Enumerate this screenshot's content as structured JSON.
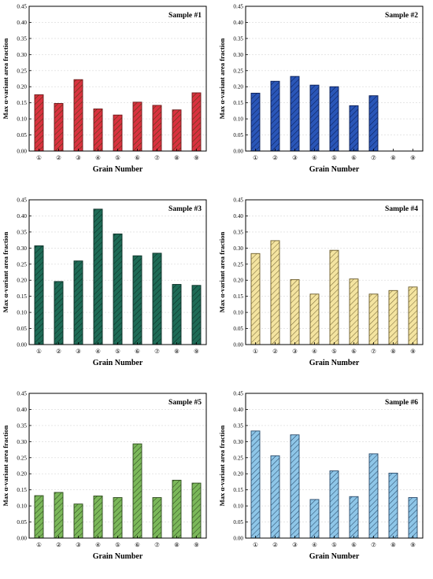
{
  "chart_data": [
    {
      "type": "bar",
      "title": "Sample #1",
      "xlabel": "Grain Number",
      "ylabel": "Max α-variant area fraction",
      "categories": [
        "①",
        "②",
        "③",
        "④",
        "⑤",
        "⑥",
        "⑦",
        "⑧",
        "⑨"
      ],
      "values": [
        0.175,
        0.148,
        0.222,
        0.131,
        0.112,
        0.152,
        0.142,
        0.128,
        0.181
      ],
      "ylim": [
        0,
        0.45
      ],
      "yticks": [
        "0.00",
        "0.05",
        "0.10",
        "0.15",
        "0.20",
        "0.25",
        "0.30",
        "0.35",
        "0.40",
        "0.45"
      ],
      "color": "#d9323f",
      "edge_color": "#6b1a1a",
      "hatch_color": "#4a3a10",
      "grid": true
    },
    {
      "type": "bar",
      "title": "Sample #2",
      "xlabel": "Grain Number",
      "ylabel": "Max α-variant area fraction",
      "categories": [
        "①",
        "②",
        "③",
        "④",
        "⑤",
        "⑥",
        "⑦",
        "⑧",
        "⑨"
      ],
      "values": [
        0.18,
        0.217,
        0.232,
        0.205,
        0.2,
        0.141,
        0.172,
        null,
        null
      ],
      "ylim": [
        0,
        0.45
      ],
      "yticks": [
        "0.00",
        "0.05",
        "0.10",
        "0.15",
        "0.20",
        "0.25",
        "0.30",
        "0.35",
        "0.40",
        "0.45"
      ],
      "color": "#2a56b8",
      "edge_color": "#0c1f55",
      "hatch_color": "#0c1f55",
      "grid": true
    },
    {
      "type": "bar",
      "title": "Sample #3",
      "xlabel": "Grain Number",
      "ylabel": "Max α-variant area fraction",
      "categories": [
        "①",
        "②",
        "③",
        "④",
        "⑤",
        "⑥",
        "⑦",
        "⑧",
        "⑨"
      ],
      "values": [
        0.307,
        0.196,
        0.26,
        0.421,
        0.344,
        0.276,
        0.284,
        0.187,
        0.184
      ],
      "ylim": [
        0,
        0.45
      ],
      "yticks": [
        "0.00",
        "0.05",
        "0.10",
        "0.15",
        "0.20",
        "0.25",
        "0.30",
        "0.35",
        "0.40",
        "0.45"
      ],
      "color": "#1e6b56",
      "edge_color": "#0a2e25",
      "hatch_color": "#0a2e25",
      "grid": true
    },
    {
      "type": "bar",
      "title": "Sample #4",
      "xlabel": "Grain Number",
      "ylabel": "Max α-variant area fraction",
      "categories": [
        "①",
        "②",
        "③",
        "④",
        "⑤",
        "⑥",
        "⑦",
        "⑧",
        "⑨"
      ],
      "values": [
        0.283,
        0.323,
        0.202,
        0.157,
        0.293,
        0.204,
        0.157,
        0.168,
        0.179
      ],
      "ylim": [
        0,
        0.45
      ],
      "yticks": [
        "0.00",
        "0.05",
        "0.10",
        "0.15",
        "0.20",
        "0.25",
        "0.30",
        "0.35",
        "0.40",
        "0.45"
      ],
      "color": "#f4e4a0",
      "edge_color": "#6a5a2a",
      "hatch_color": "#7a6a3a",
      "grid": true
    },
    {
      "type": "bar",
      "title": "Sample #5",
      "xlabel": "Grain Number",
      "ylabel": "Max α-variant area fraction",
      "categories": [
        "①",
        "②",
        "③",
        "④",
        "⑤",
        "⑥",
        "⑦",
        "⑧",
        "⑨"
      ],
      "values": [
        0.132,
        0.142,
        0.106,
        0.131,
        0.126,
        0.293,
        0.126,
        0.18,
        0.171
      ],
      "ylim": [
        0,
        0.45
      ],
      "yticks": [
        "0.00",
        "0.05",
        "0.10",
        "0.15",
        "0.20",
        "0.25",
        "0.30",
        "0.35",
        "0.40",
        "0.45"
      ],
      "color": "#7bb85a",
      "edge_color": "#2e4a1e",
      "hatch_color": "#2e4a1e",
      "grid": true
    },
    {
      "type": "bar",
      "title": "Sample #6",
      "xlabel": "Grain Number",
      "ylabel": "Max α-variant area fraction",
      "categories": [
        "①",
        "②",
        "③",
        "④",
        "⑤",
        "⑥",
        "⑦",
        "⑧",
        "⑨"
      ],
      "values": [
        0.333,
        0.256,
        0.321,
        0.12,
        0.209,
        0.129,
        0.262,
        0.202,
        0.126
      ],
      "ylim": [
        0,
        0.45
      ],
      "yticks": [
        "0.00",
        "0.05",
        "0.10",
        "0.15",
        "0.20",
        "0.25",
        "0.30",
        "0.35",
        "0.40",
        "0.45"
      ],
      "color": "#8ec6e8",
      "edge_color": "#2a4a6a",
      "hatch_color": "#2a4a6a",
      "grid": true
    }
  ]
}
